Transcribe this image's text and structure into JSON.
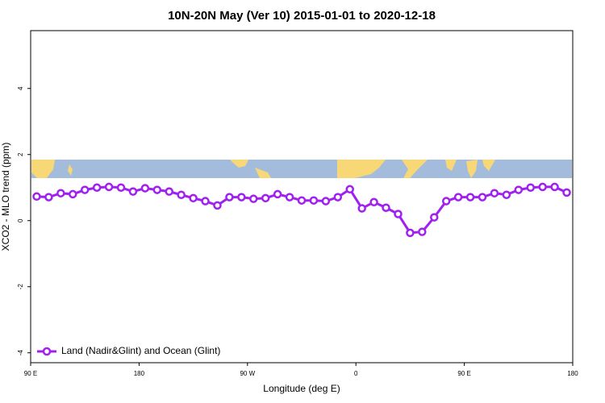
{
  "chart_data": {
    "type": "line",
    "title": "10N-20N May (Ver 10)   2015-01-01 to 2020-12-18",
    "x_label": "Longitude (deg E)",
    "y_label": "XCO2 - MLO trend (ppm)",
    "xlim": [
      90,
      540
    ],
    "xticks": [
      {
        "value": 90,
        "label": "90 E"
      },
      {
        "value": 180,
        "label": "180"
      },
      {
        "value": 270,
        "label": "90 W"
      },
      {
        "value": 360,
        "label": "0"
      },
      {
        "value": 450,
        "label": "90 E"
      },
      {
        "value": 540,
        "label": "180"
      }
    ],
    "ylim": [
      -4.3,
      5.75
    ],
    "yticks": [
      -4,
      -2,
      0,
      2,
      4
    ],
    "legend": "bottom-left",
    "x": [
      95,
      105,
      115,
      125,
      135,
      145,
      155,
      165,
      175,
      185,
      195,
      205,
      215,
      225,
      235,
      245,
      255,
      265,
      275,
      285,
      295,
      305,
      315,
      325,
      335,
      345,
      355,
      365,
      375,
      385,
      395,
      405,
      415,
      425,
      435,
      445,
      455,
      465,
      475,
      485,
      495,
      505,
      515,
      525,
      535
    ],
    "series": [
      {
        "name": "Land (Nadir&Glint) and Ocean (Glint)",
        "color": "#a020f0",
        "values": [
          0.73,
          0.71,
          0.83,
          0.8,
          0.93,
          1.0,
          1.02,
          1.0,
          0.88,
          0.98,
          0.93,
          0.88,
          0.78,
          0.68,
          0.59,
          0.46,
          0.71,
          0.71,
          0.66,
          0.68,
          0.8,
          0.71,
          0.61,
          0.61,
          0.59,
          0.71,
          0.95,
          0.37,
          0.56,
          0.39,
          0.2,
          -0.37,
          -0.34,
          0.1,
          0.59,
          0.71,
          0.71,
          0.71,
          0.83,
          0.78,
          0.93,
          1.0,
          1.02,
          1.02,
          0.85
        ]
      }
    ]
  }
}
